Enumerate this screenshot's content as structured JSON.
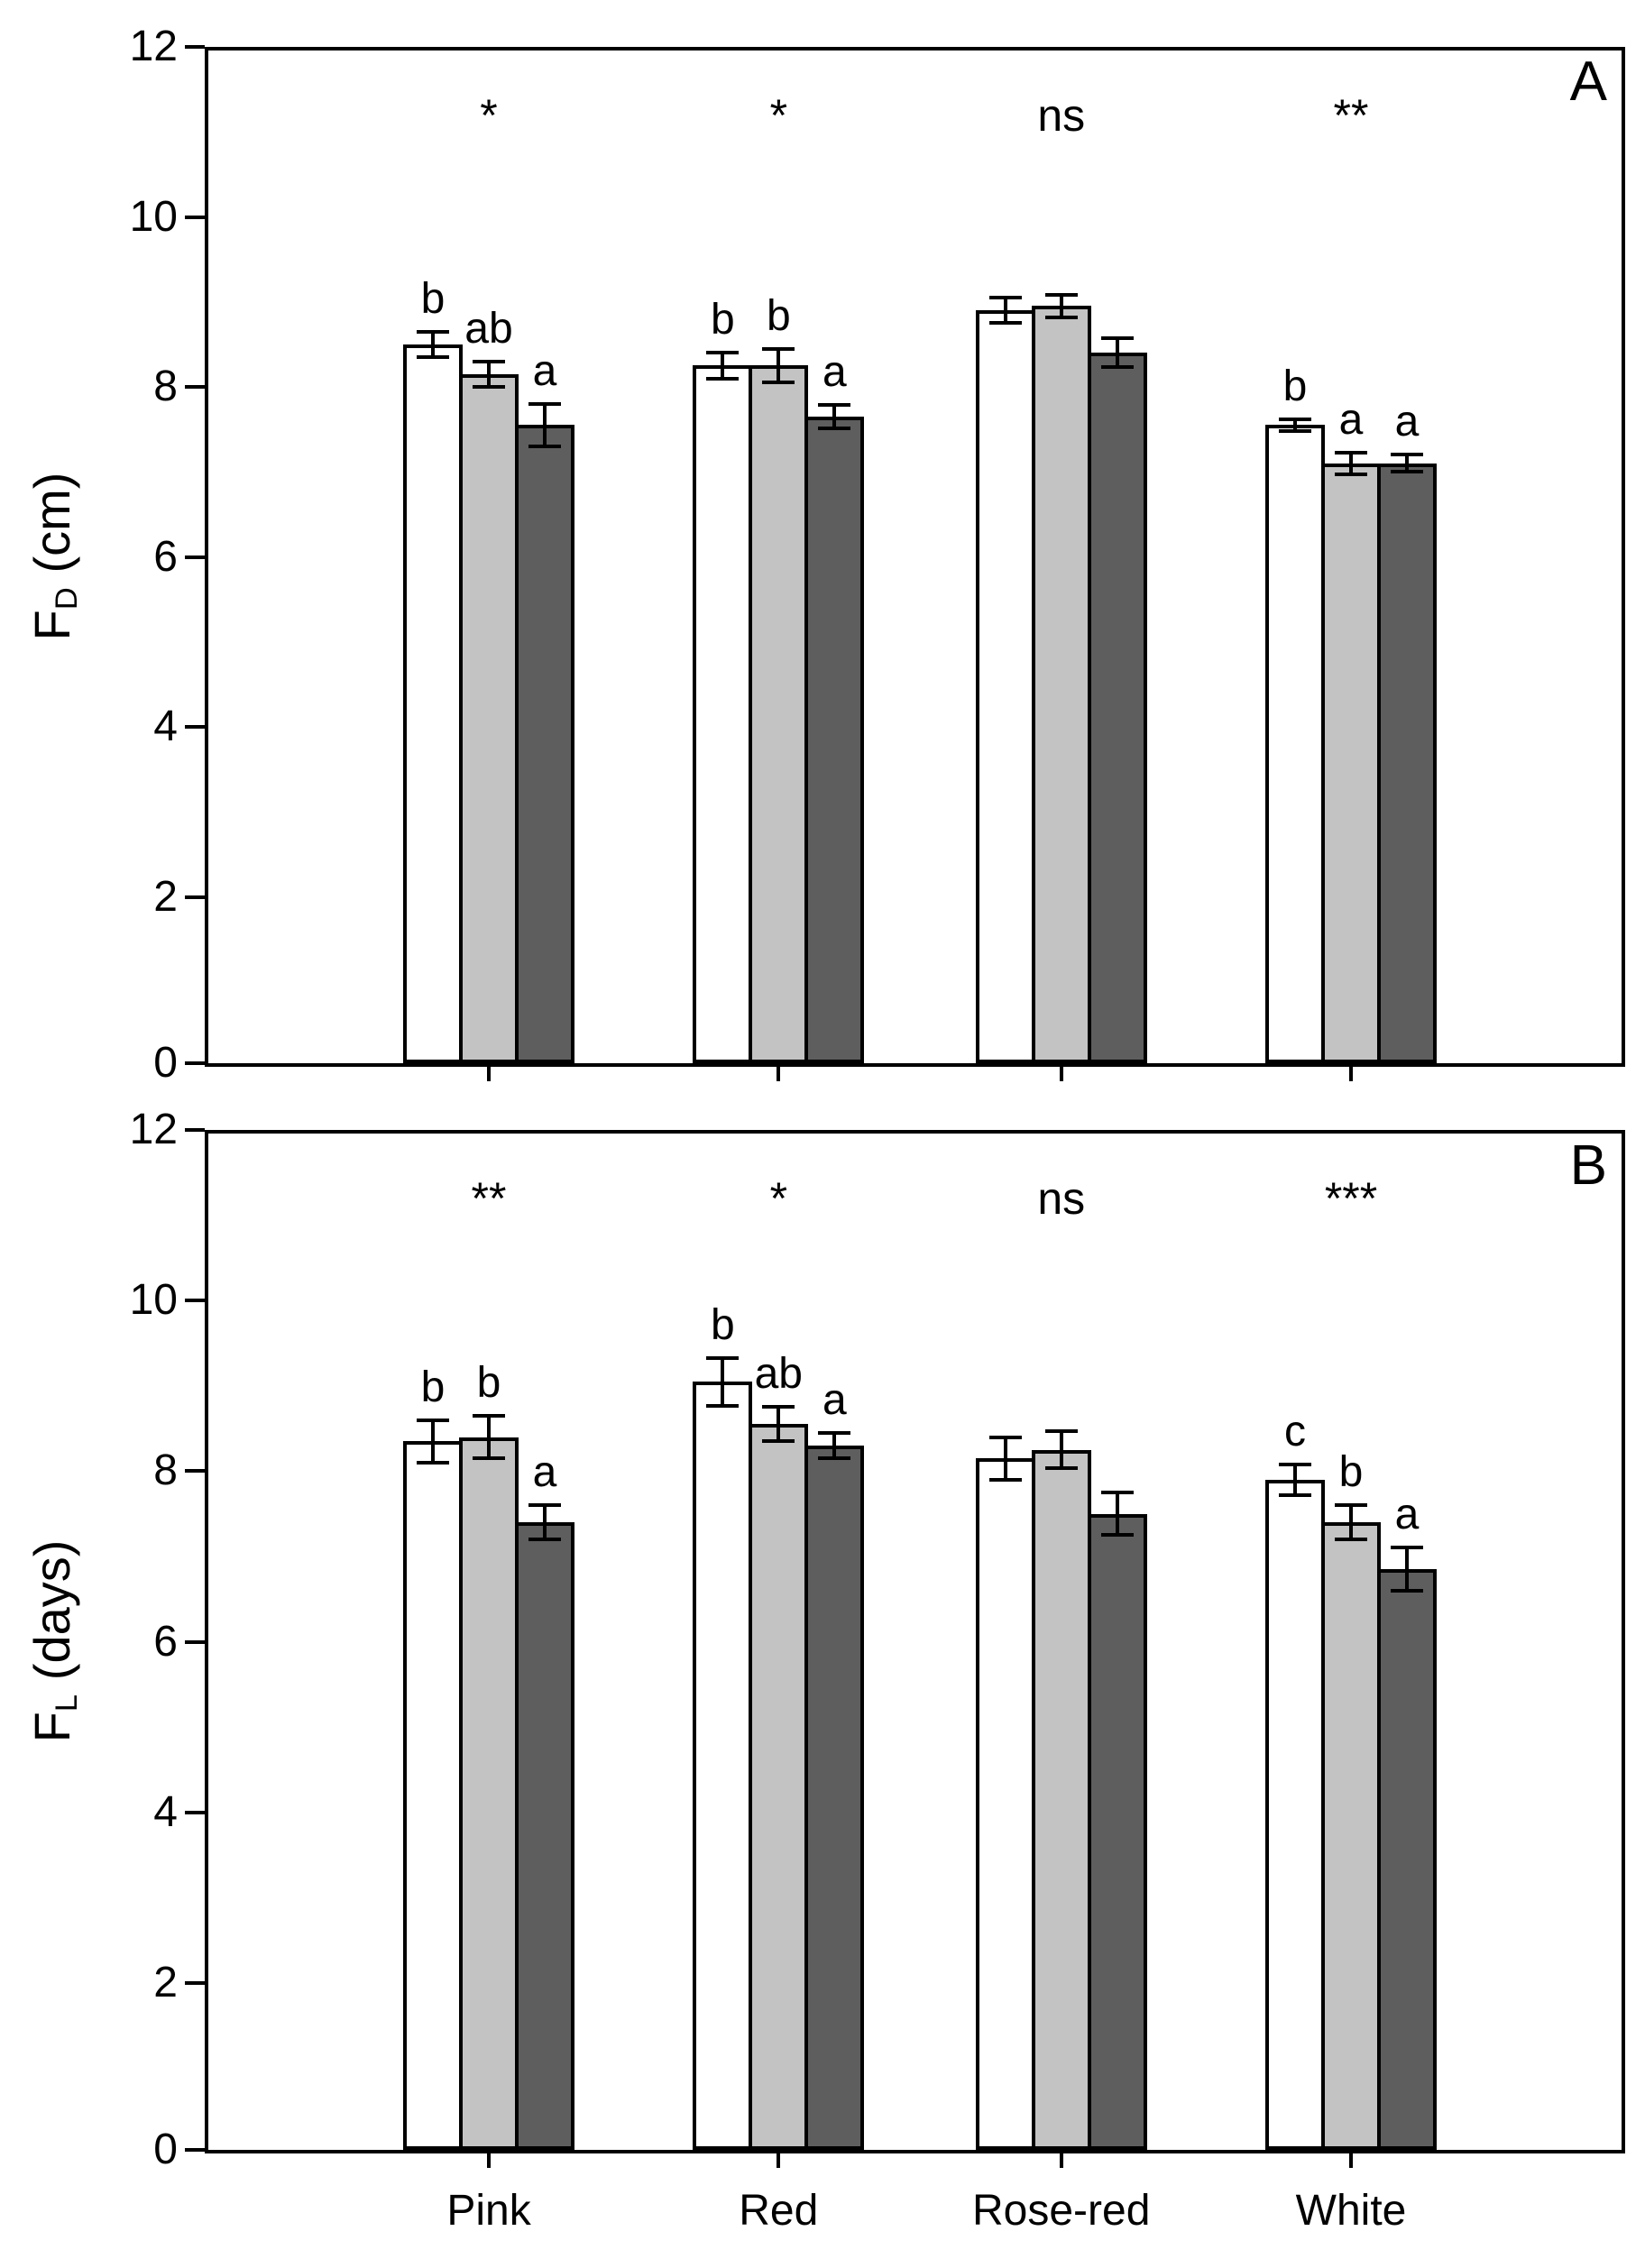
{
  "figure": {
    "background": "#ffffff",
    "axis_color": "#000000",
    "bar_fill_colors": {
      "white": "#ffffff",
      "light_gray": "#c3c3c3",
      "dark_gray": "#5e5e5e"
    }
  },
  "chart_data": [
    {
      "type": "bar",
      "panel_label": "A",
      "ylabel": {
        "main": "F",
        "sub": "D",
        "unit": "(cm)"
      },
      "ylim": [
        0,
        12
      ],
      "yticks": [
        0,
        2,
        4,
        6,
        8,
        10,
        12
      ],
      "grid": false,
      "legend": "none",
      "categories": [
        "Pink",
        "Red",
        "Rose-red",
        "White"
      ],
      "significance": [
        "*",
        "*",
        "ns",
        "**"
      ],
      "series": [
        {
          "name": "white",
          "fill": "#ffffff",
          "values": [
            8.5,
            8.25,
            8.9,
            7.55
          ],
          "errors": [
            0.15,
            0.15,
            0.15,
            0.07
          ],
          "letters": [
            "b",
            "b",
            "",
            "b"
          ]
        },
        {
          "name": "light-gray",
          "fill": "#c3c3c3",
          "values": [
            8.15,
            8.25,
            8.95,
            7.1
          ],
          "errors": [
            0.15,
            0.2,
            0.13,
            0.13
          ],
          "letters": [
            "ab",
            "b",
            "",
            "a"
          ]
        },
        {
          "name": "dark-gray",
          "fill": "#5e5e5e",
          "values": [
            7.55,
            7.65,
            8.4,
            7.1
          ],
          "errors": [
            0.25,
            0.14,
            0.17,
            0.1
          ],
          "letters": [
            "a",
            "a",
            "",
            "a"
          ]
        }
      ]
    },
    {
      "type": "bar",
      "panel_label": "B",
      "ylabel": {
        "main": "F",
        "sub": "L",
        "unit": "(days)"
      },
      "ylim": [
        0,
        12
      ],
      "yticks": [
        0,
        2,
        4,
        6,
        8,
        10,
        12
      ],
      "grid": false,
      "legend": "none",
      "categories": [
        "Pink",
        "Red",
        "Rose-red",
        "White"
      ],
      "significance": [
        "**",
        "*",
        "ns",
        "***"
      ],
      "series": [
        {
          "name": "white",
          "fill": "#ffffff",
          "values": [
            8.35,
            9.05,
            8.15,
            7.9
          ],
          "errors": [
            0.25,
            0.28,
            0.25,
            0.18
          ],
          "letters": [
            "b",
            "b",
            "",
            "c"
          ]
        },
        {
          "name": "light-gray",
          "fill": "#c3c3c3",
          "values": [
            8.4,
            8.55,
            8.25,
            7.4
          ],
          "errors": [
            0.25,
            0.2,
            0.22,
            0.2
          ],
          "letters": [
            "b",
            "ab",
            "",
            "b"
          ]
        },
        {
          "name": "dark-gray",
          "fill": "#5e5e5e",
          "values": [
            7.4,
            8.3,
            7.5,
            6.85
          ],
          "errors": [
            0.2,
            0.15,
            0.25,
            0.25
          ],
          "letters": [
            "a",
            "a",
            "",
            "a"
          ]
        }
      ]
    }
  ]
}
